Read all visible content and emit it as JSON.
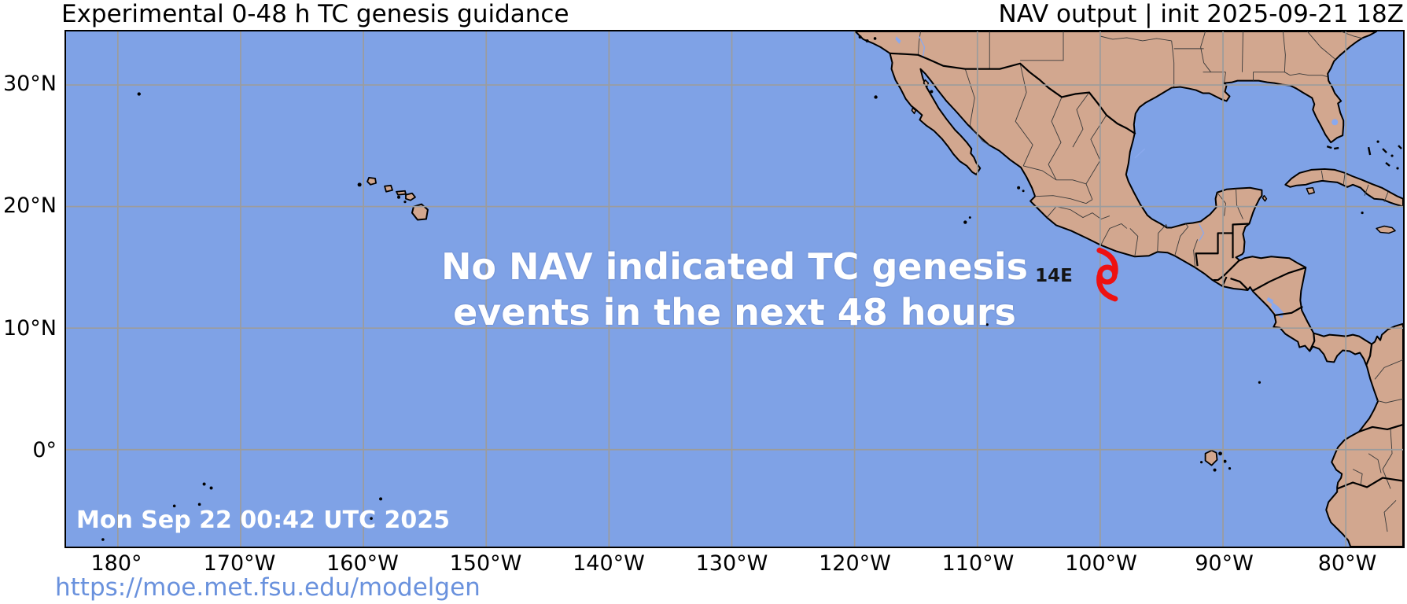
{
  "header": {
    "title": "Experimental 0-48 h TC genesis guidance",
    "model_info": "NAV output | init 2025-09-21 18Z"
  },
  "map": {
    "message_line1": "No NAV indicated TC genesis",
    "message_line2": "events in the next 48 hours",
    "timestamp": "Mon Sep 22 00:42 UTC 2025",
    "storm": {
      "label": "14E",
      "icon": "tropical-cyclone-icon"
    }
  },
  "axes": {
    "x_ticks": [
      "180°",
      "170°W",
      "160°W",
      "150°W",
      "140°W",
      "130°W",
      "120°W",
      "110°W",
      "100°W",
      "90°W",
      "80°W"
    ],
    "y_ticks": [
      "30°N",
      "20°N",
      "10°N",
      "0°"
    ]
  },
  "footer": {
    "url": "https://moe.met.fsu.edu/modelgen"
  },
  "colors": {
    "ocean": "#7FA2E6",
    "land": "#D2A78F",
    "grid": "#9C9C9C",
    "storm_red": "#EE1111",
    "link_blue": "#6991DD"
  }
}
